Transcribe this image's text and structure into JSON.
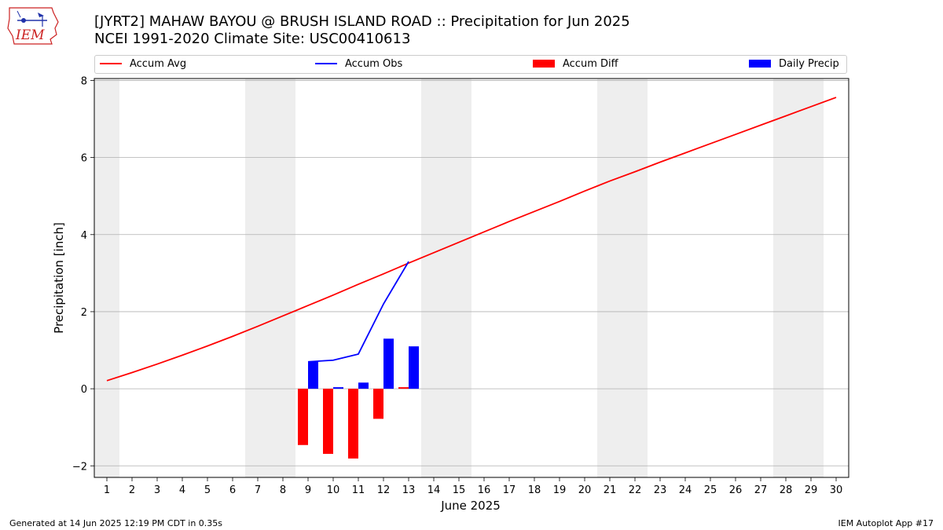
{
  "header": {
    "logo_text": "IEM",
    "title_line1": "[JYRT2] MAHAW BAYOU @ BRUSH ISLAND ROAD :: Precipitation for Jun 2025",
    "title_line2": "NCEI 1991-2020 Climate Site: USC00410613"
  },
  "legend": {
    "items": [
      {
        "label": "Accum Avg",
        "color": "#ff0000",
        "kind": "line"
      },
      {
        "label": "Accum Obs",
        "color": "#0000ff",
        "kind": "line"
      },
      {
        "label": "Accum Diff",
        "color": "#ff0000",
        "kind": "bar"
      },
      {
        "label": "Daily Precip",
        "color": "#0000ff",
        "kind": "bar"
      }
    ]
  },
  "footer": {
    "left": "Generated at 14 Jun 2025 12:19 PM CDT in 0.35s",
    "right": "IEM Autoplot App #17"
  },
  "chart_data": {
    "type": "bar",
    "xlabel": "June 2025",
    "ylabel": "Precipitation [inch]",
    "xlim": [
      0.5,
      30.5
    ],
    "ylim": [
      -2.3,
      8.05
    ],
    "yticks": [
      -2,
      0,
      2,
      4,
      6,
      8
    ],
    "x": [
      1,
      2,
      3,
      4,
      5,
      6,
      7,
      8,
      9,
      10,
      11,
      12,
      13,
      14,
      15,
      16,
      17,
      18,
      19,
      20,
      21,
      22,
      23,
      24,
      25,
      26,
      27,
      28,
      29,
      30
    ],
    "weekend_bands": [
      [
        0.5,
        1.5
      ],
      [
        6.5,
        8.5
      ],
      [
        13.5,
        15.5
      ],
      [
        20.5,
        22.5
      ],
      [
        27.5,
        29.5
      ]
    ],
    "grid": "horizontal",
    "legend_position": "top",
    "colors": {
      "avg": "#ff0000",
      "obs": "#0000ff",
      "band": "#eeeeee",
      "grid": "#b0b0b0"
    },
    "series": [
      {
        "name": "Accum Avg",
        "kind": "line",
        "values": [
          0.21,
          0.42,
          0.64,
          0.87,
          1.11,
          1.36,
          1.62,
          1.89,
          2.16,
          2.43,
          2.71,
          2.98,
          3.26,
          3.53,
          3.8,
          4.07,
          4.34,
          4.6,
          4.86,
          5.13,
          5.39,
          5.63,
          5.88,
          6.12,
          6.36,
          6.6,
          6.84,
          7.08,
          7.32,
          7.56
        ]
      },
      {
        "name": "Accum Obs",
        "kind": "line",
        "x": [
          9,
          10,
          11,
          12,
          13
        ],
        "values": [
          0.7,
          0.74,
          0.9,
          2.2,
          3.3
        ]
      },
      {
        "name": "Accum Diff",
        "kind": "bar",
        "x": [
          9,
          10,
          11,
          12,
          13
        ],
        "values": [
          -1.46,
          -1.69,
          -1.81,
          -0.78,
          0.04
        ]
      },
      {
        "name": "Daily Precip",
        "kind": "bar",
        "x": [
          9,
          10,
          11,
          12,
          13
        ],
        "values": [
          0.7,
          0.04,
          0.16,
          1.3,
          1.1
        ]
      }
    ]
  }
}
